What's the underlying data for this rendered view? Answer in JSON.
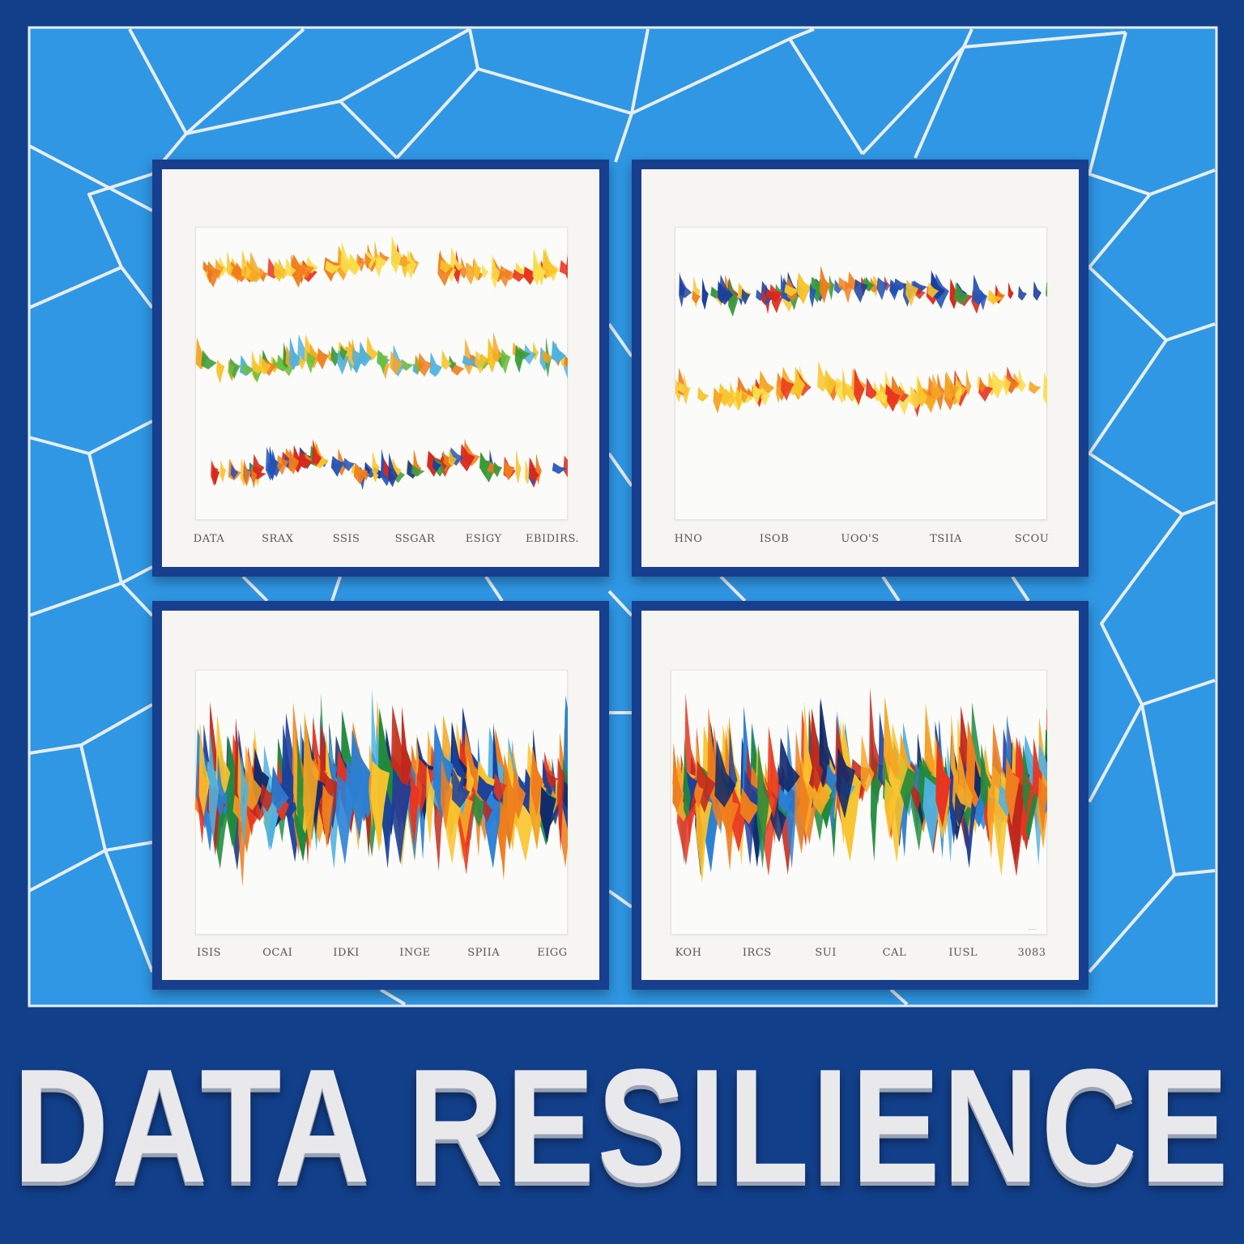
{
  "headline": "DATA RESILIENCE",
  "colors": {
    "wall_navy": "#123f8a",
    "panel_blue": "#2f97e4",
    "panel_lines": "#e7eef7",
    "frame_navy": "#173f8e",
    "mat": "#f6f5f1",
    "letters": "#e9e9ec"
  },
  "palettes": {
    "warm": [
      "#e8351f",
      "#f07d1c",
      "#f5a623",
      "#f9c42c",
      "#fbdd4a"
    ],
    "mixed": [
      "#f9c42c",
      "#f5a623",
      "#4fb2e0",
      "#3a9b3a",
      "#6cbf3c",
      "#f07d1c"
    ],
    "cool_mix": [
      "#d9281c",
      "#1c3f9c",
      "#2255b8",
      "#3a9b3a",
      "#f07d1c",
      "#f9c42c"
    ],
    "rainbow": [
      "#1c3f9c",
      "#2b7fd4",
      "#4fb2e0",
      "#1f8a3c",
      "#e8351f",
      "#f07d1c",
      "#f5a623",
      "#f9c42c",
      "#c0281c",
      "#0f2a6b"
    ]
  },
  "panels": [
    {
      "id": "top-left",
      "captions": [
        "DATA",
        "SRAX",
        "SSIS",
        "SSGAR",
        "ESIGY",
        "EBIDIRS."
      ],
      "bands": [
        {
          "palette": "warm",
          "level": 0.14
        },
        {
          "palette": "mixed",
          "level": 0.46
        },
        {
          "palette": "cool_mix",
          "level": 0.82
        }
      ]
    },
    {
      "id": "top-right",
      "captions": [
        "HNO",
        "ISOB",
        "UOO'S",
        "TSIIA",
        "SCOU"
      ],
      "bands": [
        {
          "palette": "cool_mix",
          "level": 0.22
        },
        {
          "palette": "warm",
          "level": 0.56
        }
      ]
    },
    {
      "id": "bottom-left",
      "captions": [
        "ISIS",
        "OCAI",
        "IDKI",
        "INGE",
        "SPIIA",
        "EIGG"
      ],
      "bands": [
        {
          "palette": "rainbow",
          "level": 0.45,
          "dense": true
        }
      ]
    },
    {
      "id": "bottom-right",
      "captions": [
        "KOH",
        "IRCS",
        "SUI",
        "CAL",
        "IUSL",
        "3083"
      ],
      "signature": "......",
      "bands": [
        {
          "palette": "rainbow",
          "level": 0.45,
          "dense": true
        }
      ]
    }
  ]
}
